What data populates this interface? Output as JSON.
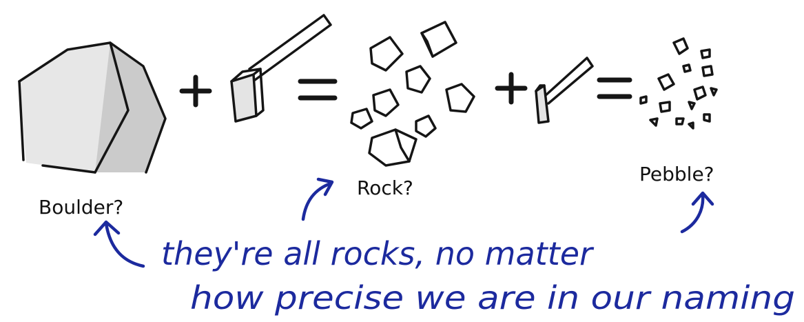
{
  "labels": {
    "boulder": "Boulder?",
    "rock": "Rock?",
    "pebble": "Pebble?"
  },
  "note": {
    "line1": "they're all rocks, no matter",
    "line2": "how precise we are in our naming"
  },
  "colors": {
    "ink": "#151515",
    "note_blue": "#1c2a9e",
    "stone_light": "#e6e6e6",
    "stone_dark": "#c9c9c9"
  },
  "icons": [
    "boulder-icon",
    "sledgehammer-icon",
    "rocks-icon",
    "small-hammer-icon",
    "pebbles-icon",
    "arrow-icon"
  ]
}
